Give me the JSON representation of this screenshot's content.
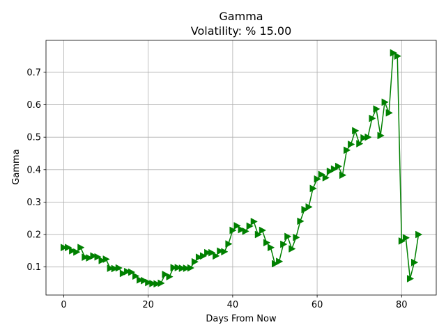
{
  "chart_data": {
    "type": "line",
    "title": "Gamma",
    "subtitle": "Volatility: % 15.00",
    "xlabel": "Days From Now",
    "ylabel": "Gamma",
    "xlim": [
      -4.2,
      88.2
    ],
    "ylim": [
      0.0135,
      0.7985
    ],
    "xticks": [
      0,
      20,
      40,
      60,
      80
    ],
    "yticks": [
      0.1,
      0.2,
      0.3,
      0.4,
      0.5,
      0.6,
      0.7
    ],
    "xtick_labels": [
      "0",
      "20",
      "40",
      "60",
      "80"
    ],
    "ytick_labels": [
      "0.1",
      "0.2",
      "0.3",
      "0.4",
      "0.5",
      "0.6",
      "0.7"
    ],
    "grid": true,
    "color": "#008000",
    "marker": "triangle-right",
    "series": [
      {
        "x": [
          0,
          1,
          2,
          3,
          4,
          5,
          6,
          7,
          8,
          9,
          10,
          11,
          12,
          13,
          14,
          15,
          16,
          17,
          18,
          19,
          20,
          21,
          22,
          23,
          24,
          25,
          26,
          27,
          28,
          29,
          30,
          31,
          32,
          33,
          34,
          35,
          36,
          37,
          38,
          39,
          40,
          41,
          42,
          43,
          44,
          45,
          46,
          47,
          48,
          49,
          50,
          51,
          52,
          53,
          54,
          55,
          56,
          57,
          58,
          59,
          60,
          61,
          62,
          63,
          64,
          65,
          66,
          67,
          68,
          69,
          70,
          71,
          72,
          73,
          74,
          75,
          76,
          77,
          78,
          79,
          80,
          81,
          82,
          83,
          84
        ],
        "y": [
          0.16,
          0.16,
          0.15,
          0.146,
          0.16,
          0.13,
          0.128,
          0.134,
          0.131,
          0.12,
          0.124,
          0.096,
          0.095,
          0.097,
          0.08,
          0.086,
          0.084,
          0.072,
          0.06,
          0.058,
          0.052,
          0.049,
          0.048,
          0.05,
          0.077,
          0.07,
          0.098,
          0.098,
          0.096,
          0.096,
          0.097,
          0.116,
          0.13,
          0.134,
          0.144,
          0.144,
          0.134,
          0.149,
          0.147,
          0.171,
          0.213,
          0.227,
          0.215,
          0.21,
          0.226,
          0.24,
          0.2,
          0.213,
          0.175,
          0.16,
          0.11,
          0.117,
          0.17,
          0.194,
          0.156,
          0.191,
          0.241,
          0.277,
          0.285,
          0.342,
          0.371,
          0.385,
          0.375,
          0.395,
          0.402,
          0.41,
          0.383,
          0.46,
          0.478,
          0.52,
          0.48,
          0.498,
          0.5,
          0.558,
          0.587,
          0.505,
          0.608,
          0.575,
          0.76,
          0.75,
          0.18,
          0.19,
          0.064,
          0.114,
          0.2
        ]
      }
    ]
  }
}
